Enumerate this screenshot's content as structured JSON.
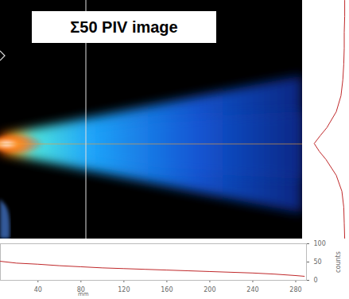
{
  "chart_data": [
    {
      "type": "line",
      "title": "Σ50 PIV image",
      "x_label": "mm",
      "y_label": "counts",
      "x": [
        5,
        20,
        40,
        60,
        80,
        100,
        120,
        140,
        160,
        180,
        200,
        220,
        240,
        260,
        280,
        288
      ],
      "values": [
        52,
        47,
        44,
        40,
        37,
        34,
        32,
        30,
        28,
        26,
        24,
        22,
        20,
        17,
        13,
        11
      ],
      "color": "#c0282a",
      "xlim": [
        5,
        290
      ],
      "xticks": [
        40,
        80,
        120,
        160,
        200,
        240,
        280
      ],
      "ylim": [
        0,
        100
      ],
      "yticks": [
        0,
        50,
        100
      ]
    },
    {
      "type": "line",
      "orientation": "horizontal",
      "x": [
        0,
        20,
        40,
        60,
        80,
        100,
        120,
        140,
        160,
        170,
        180,
        190,
        200,
        220,
        240,
        260,
        280,
        300
      ],
      "values": [
        10,
        10,
        11,
        11,
        12,
        14,
        18,
        28,
        48,
        62,
        75,
        64,
        50,
        28,
        16,
        12,
        11,
        10
      ],
      "color": "#c0282a",
      "xlim": [
        0,
        300
      ],
      "ylim": [
        0,
        100
      ],
      "tick_labels": false
    }
  ]
}
